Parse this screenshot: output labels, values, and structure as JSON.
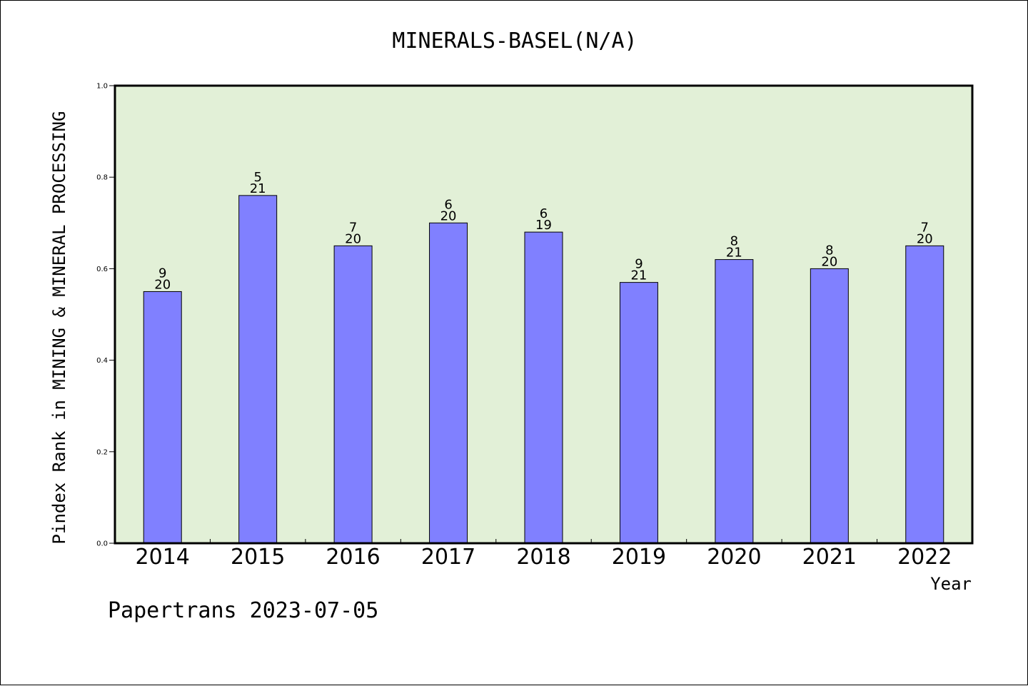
{
  "chart_data": {
    "type": "bar",
    "title": "MINERALS-BASEL(N/A)",
    "xlabel": "Year",
    "ylabel": "Pindex Rank in MINING & MINERAL PROCESSING",
    "categories": [
      "2014",
      "2015",
      "2016",
      "2017",
      "2018",
      "2019",
      "2020",
      "2021",
      "2022"
    ],
    "values": [
      0.55,
      0.76,
      0.65,
      0.7,
      0.68,
      0.57,
      0.62,
      0.6,
      0.65
    ],
    "rank": [
      "9",
      "5",
      "7",
      "6",
      "6",
      "9",
      "8",
      "8",
      "7"
    ],
    "total": [
      "20",
      "21",
      "20",
      "20",
      "19",
      "21",
      "21",
      "20",
      "20"
    ],
    "ylim": [
      0,
      1.0
    ],
    "yticks": [
      "0.0",
      "0.2",
      "0.4",
      "0.6",
      "0.8",
      "1.0"
    ],
    "grid": false,
    "legend": "none",
    "colors": {
      "bar": "#8080ff",
      "plot_bg": "#e2f0d7",
      "axis": "#000000"
    }
  },
  "footer": {
    "text": "Papertrans 2023-07-05"
  }
}
